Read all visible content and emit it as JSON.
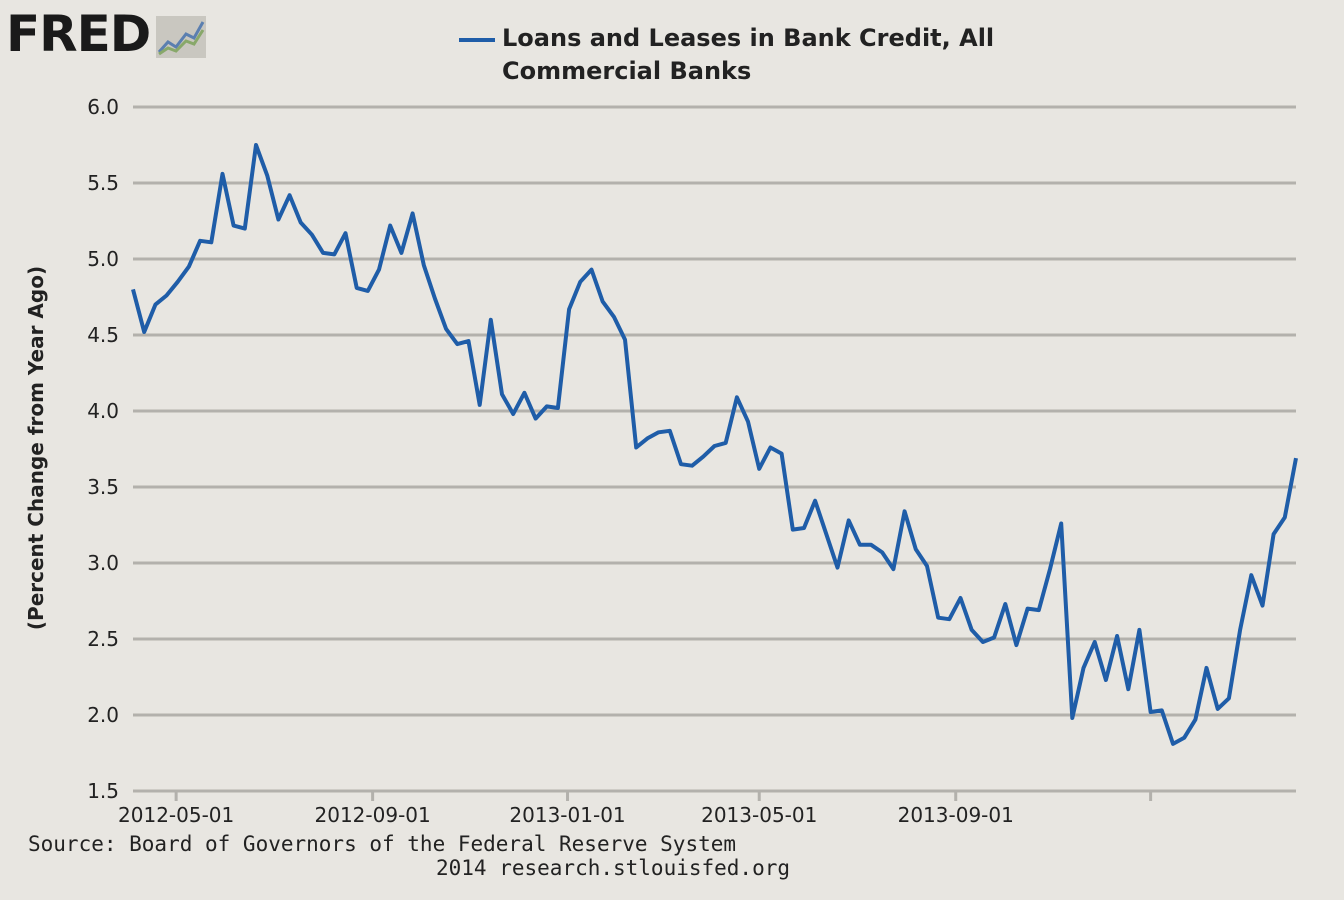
{
  "brand": {
    "logo_text": "FRED",
    "logo_icon": "chart-trend-icon"
  },
  "source": {
    "line1": "Source: Board of Governors of the Federal Reserve System",
    "line2": "2014 research.stlouisfed.org"
  },
  "colors": {
    "series": "#1f5da8",
    "grid": "#b3b1ac",
    "background": "#e8e6e1",
    "text": "#222222"
  },
  "chart_data": {
    "type": "line",
    "title": "",
    "xlabel": "",
    "ylabel": "(Percent Change from Year Ago)",
    "legend": {
      "position": "top",
      "entries": [
        "Loans and Leases in Bank Credit, All",
        "Commercial Banks"
      ]
    },
    "ylim": [
      1.5,
      6.0
    ],
    "yticks": [
      "6.0",
      "5.5",
      "5.0",
      "4.5",
      "4.0",
      "3.5",
      "3.0",
      "2.5",
      "2.0",
      "1.5"
    ],
    "xticks": [
      "2012-05-01",
      "2012-09-01",
      "2013-01-01",
      "2013-05-01",
      "2013-09-01",
      ""
    ],
    "grid": true,
    "series": [
      {
        "name": "Loans and Leases in Bank Credit, All Commercial Banks",
        "frequency": "weekly",
        "x_start": "2012-04-04",
        "values": [
          4.8,
          4.52,
          4.7,
          4.76,
          4.85,
          4.95,
          5.12,
          5.11,
          5.56,
          5.22,
          5.2,
          5.75,
          5.55,
          5.26,
          5.42,
          5.24,
          5.16,
          5.04,
          5.03,
          5.17,
          4.81,
          4.79,
          4.93,
          5.22,
          5.04,
          5.3,
          4.96,
          4.74,
          4.54,
          4.44,
          4.46,
          4.04,
          4.6,
          4.11,
          3.98,
          4.12,
          3.95,
          4.03,
          4.02,
          4.67,
          4.85,
          4.93,
          4.72,
          4.62,
          4.47,
          3.76,
          3.82,
          3.86,
          3.87,
          3.65,
          3.64,
          3.7,
          3.77,
          3.79,
          4.09,
          3.93,
          3.62,
          3.76,
          3.72,
          3.22,
          3.23,
          3.41,
          3.19,
          2.97,
          3.28,
          3.12,
          3.12,
          3.07,
          2.96,
          3.34,
          3.09,
          2.98,
          2.64,
          2.63,
          2.77,
          2.56,
          2.48,
          2.51,
          2.73,
          2.46,
          2.7,
          2.69,
          2.96,
          3.26,
          1.98,
          2.31,
          2.48,
          2.23,
          2.52,
          2.17,
          2.56,
          2.02,
          2.03,
          1.81,
          1.85,
          1.97,
          2.31,
          2.04,
          2.11,
          2.56,
          2.92,
          2.72,
          3.19,
          3.3,
          3.69
        ]
      }
    ]
  }
}
